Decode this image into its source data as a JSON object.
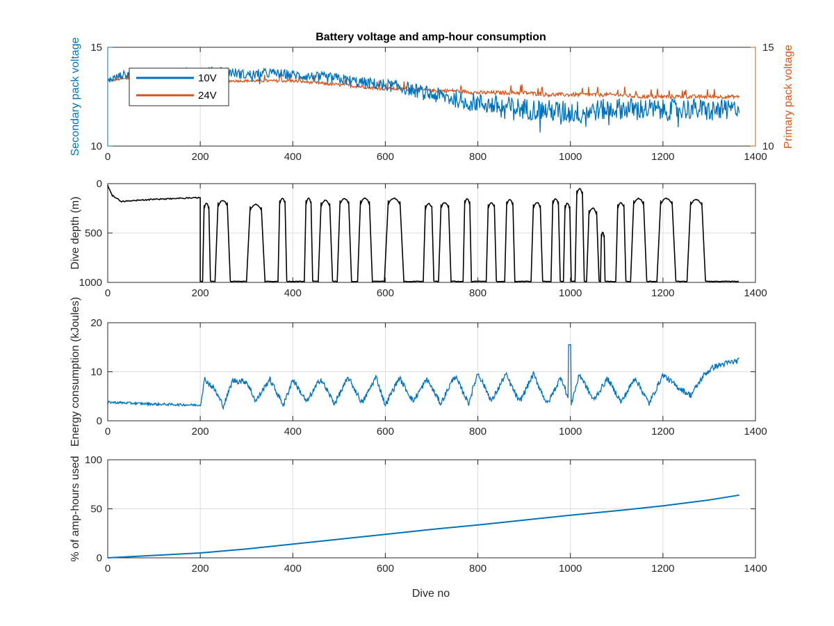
{
  "figure": {
    "title": "Battery voltage and amp-hour consumption",
    "xlabel": "Dive no"
  },
  "colors": {
    "blue": "#0072BD",
    "orange": "#D95319",
    "black": "#000000",
    "grid": "#dcdcdc",
    "axis": "#262626"
  },
  "chart_data": [
    {
      "type": "line",
      "title": "Battery voltage and amp-hour consumption",
      "xlabel": "",
      "ylabel": "Secondary pack voltage",
      "ylabel_right": "Primary pack voltage",
      "xlim": [
        0,
        1400
      ],
      "ylim": [
        10,
        15
      ],
      "ylim_right": [
        10,
        15
      ],
      "xticks": [
        0,
        200,
        400,
        600,
        800,
        1000,
        1200,
        1400
      ],
      "yticks": [
        10,
        15
      ],
      "yticks_right": [
        10,
        15
      ],
      "grid": true,
      "legend": {
        "placement": "top-left",
        "entries": [
          "10V",
          "24V"
        ]
      },
      "series": [
        {
          "name": "10V",
          "axis": "left",
          "x": [
            0,
            30,
            60,
            100,
            150,
            200,
            250,
            300,
            350,
            400,
            450,
            500,
            550,
            600,
            650,
            700,
            750,
            800,
            850,
            900,
            950,
            1000,
            1050,
            1100,
            1150,
            1200,
            1250,
            1300,
            1350,
            1365
          ],
          "y": [
            13.3,
            13.6,
            13.7,
            13.6,
            13.7,
            13.8,
            13.8,
            13.6,
            13.7,
            13.6,
            13.5,
            13.4,
            13.2,
            13.1,
            12.9,
            12.6,
            12.4,
            12.2,
            12.0,
            11.9,
            11.8,
            11.7,
            11.8,
            11.9,
            11.9,
            11.8,
            11.9,
            11.8,
            11.9,
            11.9
          ],
          "noise": [
            0.15,
            0.2,
            0.2,
            0.2,
            0.2,
            0.2,
            0.25,
            0.25,
            0.25,
            0.25,
            0.25,
            0.3,
            0.3,
            0.3,
            0.35,
            0.4,
            0.45,
            0.5,
            0.55,
            0.55,
            0.55,
            0.6,
            0.55,
            0.55,
            0.55,
            0.55,
            0.55,
            0.55,
            0.45,
            0.4
          ]
        },
        {
          "name": "24V",
          "axis": "right",
          "x": [
            0,
            30,
            60,
            100,
            150,
            200,
            250,
            300,
            350,
            400,
            450,
            500,
            550,
            600,
            650,
            700,
            750,
            800,
            850,
            900,
            950,
            1000,
            1050,
            1100,
            1150,
            1200,
            1250,
            1300,
            1350,
            1365
          ],
          "y": [
            13.3,
            13.4,
            13.4,
            13.4,
            13.4,
            13.4,
            13.3,
            13.3,
            13.3,
            13.3,
            13.2,
            13.1,
            13.0,
            12.9,
            12.9,
            12.8,
            12.8,
            12.7,
            12.7,
            12.7,
            12.6,
            12.6,
            12.6,
            12.6,
            12.5,
            12.5,
            12.5,
            12.5,
            12.5,
            12.5
          ],
          "noise": [
            0.05,
            0.06,
            0.06,
            0.06,
            0.06,
            0.06,
            0.06,
            0.06,
            0.07,
            0.07,
            0.07,
            0.08,
            0.08,
            0.08,
            0.09,
            0.09,
            0.09,
            0.1,
            0.1,
            0.1,
            0.1,
            0.1,
            0.1,
            0.1,
            0.1,
            0.1,
            0.1,
            0.1,
            0.08,
            0.06
          ]
        }
      ]
    },
    {
      "type": "line",
      "xlabel": "",
      "ylabel": "Dive depth (m)",
      "xlim": [
        0,
        1400
      ],
      "ylim": [
        0,
        1000
      ],
      "y_reversed": true,
      "xticks": [
        0,
        200,
        400,
        600,
        800,
        1000,
        1200,
        1400
      ],
      "yticks": [
        0,
        500,
        1000
      ],
      "ytick_labels": [
        "0",
        "500",
        "1000"
      ],
      "grid": true,
      "series": [
        {
          "name": "",
          "shallow_phase": {
            "x": [
              0,
              10,
              30,
              60,
              100,
              150,
              200
            ],
            "y": [
              20,
              120,
              180,
              170,
              160,
              150,
              140
            ]
          },
          "deep_level": 990,
          "cycles": [
            {
              "start": 205,
              "end": 222,
              "top": 200
            },
            {
              "start": 232,
              "end": 265,
              "top": 170
            },
            {
              "start": 300,
              "end": 340,
              "top": 210
            },
            {
              "start": 368,
              "end": 387,
              "top": 150
            },
            {
              "start": 425,
              "end": 443,
              "top": 150
            },
            {
              "start": 455,
              "end": 486,
              "top": 170
            },
            {
              "start": 496,
              "end": 527,
              "top": 150
            },
            {
              "start": 540,
              "end": 572,
              "top": 150
            },
            {
              "start": 598,
              "end": 640,
              "top": 150
            },
            {
              "start": 682,
              "end": 705,
              "top": 200
            },
            {
              "start": 715,
              "end": 742,
              "top": 190
            },
            {
              "start": 768,
              "end": 786,
              "top": 150
            },
            {
              "start": 818,
              "end": 840,
              "top": 190
            },
            {
              "start": 858,
              "end": 880,
              "top": 160
            },
            {
              "start": 915,
              "end": 940,
              "top": 190
            },
            {
              "start": 958,
              "end": 978,
              "top": 150
            },
            {
              "start": 985,
              "end": 1002,
              "top": 200
            },
            {
              "start": 1010,
              "end": 1030,
              "top": 50
            },
            {
              "start": 1035,
              "end": 1062,
              "top": 250
            },
            {
              "start": 1065,
              "end": 1075,
              "top": 490
            },
            {
              "start": 1098,
              "end": 1120,
              "top": 190
            },
            {
              "start": 1130,
              "end": 1165,
              "top": 150
            },
            {
              "start": 1187,
              "end": 1228,
              "top": 150
            },
            {
              "start": 1252,
              "end": 1292,
              "top": 160
            }
          ],
          "end_x": 1365
        }
      ]
    },
    {
      "type": "line",
      "xlabel": "",
      "ylabel": "Energy consumption (kJoules)",
      "xlim": [
        0,
        1400
      ],
      "ylim": [
        0,
        20
      ],
      "xticks": [
        0,
        200,
        400,
        600,
        800,
        1000,
        1200,
        1400
      ],
      "yticks": [
        0,
        10,
        20
      ],
      "grid": true,
      "series": [
        {
          "name": "",
          "x": [
            0,
            50,
            100,
            150,
            200,
            205,
            210,
            230,
            250,
            270,
            300,
            320,
            350,
            380,
            400,
            430,
            460,
            490,
            520,
            550,
            580,
            600,
            630,
            660,
            690,
            720,
            750,
            780,
            800,
            830,
            860,
            890,
            920,
            950,
            980,
            1000,
            1020,
            1050,
            1080,
            1110,
            1140,
            1170,
            1200,
            1230,
            1260,
            1290,
            1310,
            1340,
            1365
          ],
          "y": [
            3.8,
            3.6,
            3.4,
            3.3,
            3.2,
            6.0,
            8.5,
            6.5,
            3.0,
            8.2,
            8.0,
            4.0,
            8.5,
            3.2,
            8.5,
            3.8,
            8.6,
            3.5,
            8.8,
            3.6,
            9.0,
            3.2,
            8.8,
            4.0,
            8.5,
            3.5,
            9.2,
            3.6,
            9.8,
            4.0,
            9.5,
            3.8,
            9.5,
            3.4,
            9.0,
            3.0,
            9.5,
            4.2,
            8.6,
            3.8,
            8.8,
            3.5,
            9.4,
            7.0,
            5.2,
            9.5,
            11.0,
            11.8,
            12.3
          ],
          "noise": 0.6
        }
      ]
    },
    {
      "type": "line",
      "xlabel": "Dive no",
      "ylabel": "% of amp-hours used",
      "xlim": [
        0,
        1400
      ],
      "ylim": [
        0,
        100
      ],
      "xticks": [
        0,
        200,
        400,
        600,
        800,
        1000,
        1200,
        1400
      ],
      "yticks": [
        0,
        50,
        100
      ],
      "grid": true,
      "series": [
        {
          "name": "",
          "x": [
            0,
            100,
            200,
            300,
            400,
            500,
            600,
            700,
            800,
            900,
            1000,
            1100,
            1200,
            1300,
            1365
          ],
          "y": [
            0,
            2.5,
            5,
            9,
            14,
            19,
            24,
            29,
            33.5,
            38.5,
            43.5,
            48,
            53,
            59,
            64
          ]
        }
      ]
    }
  ]
}
